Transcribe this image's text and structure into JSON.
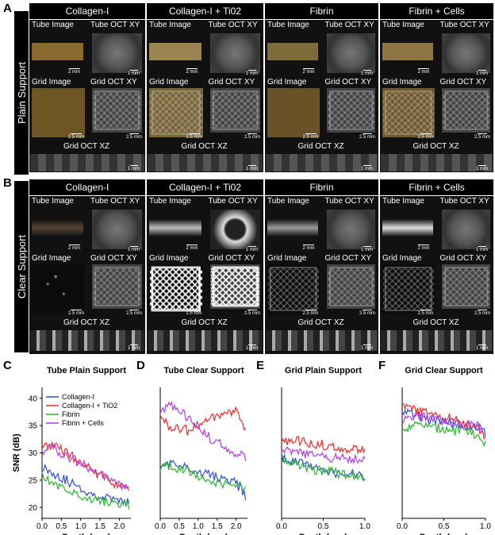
{
  "panels": {
    "A": "A",
    "B": "B",
    "C": "C",
    "D": "D",
    "E": "E",
    "F": "F"
  },
  "row_labels": {
    "A": "Plain Support",
    "B": "Clear Support"
  },
  "columns": [
    "Collagen-I",
    "Collagen-I + Ti02",
    "Fibrin",
    "Fibrin + Cells"
  ],
  "subpanel_labels": {
    "tube_image": "Tube Image",
    "tube_oct_xy": "Tube OCT XY",
    "grid_image": "Grid Image",
    "grid_oct_xy": "Grid OCT XY",
    "grid_oct_xz": "Grid OCT XZ"
  },
  "scalebars": {
    "tube_image": "2 mm",
    "oct_1mm": "1 mm",
    "grid_2_5": "2.5 mm"
  },
  "colors": {
    "collagen": "#2f4fd8",
    "collagen_tio2": "#ef2a2a",
    "fibrin": "#2bb52b",
    "fibrin_cells": "#b33ee0"
  },
  "chart_data": [
    {
      "type": "line",
      "panel": "C",
      "title": "Tube Plain Support",
      "xlabel": "Depth (mm)",
      "ylabel": "SNR (dB)",
      "xlim": [
        0,
        2.3
      ],
      "ylim": [
        18,
        42
      ],
      "xticks": [
        "0.0",
        "0.5",
        "1.0",
        "1.5",
        "2.0"
      ],
      "yticks": [
        "20",
        "25",
        "30",
        "35",
        "40"
      ],
      "legend": [
        "Collagen-I",
        "Collagen-I + TiO2",
        "Fibrin",
        "Fibrin + Cells"
      ],
      "series": [
        {
          "name": "Collagen-I",
          "x": [
            0,
            0.25,
            0.5,
            0.75,
            1.0,
            1.25,
            1.5,
            1.75,
            2.0,
            2.25
          ],
          "values": [
            27.5,
            26.5,
            25.5,
            24.5,
            23.5,
            22.5,
            22,
            21.5,
            21,
            21
          ]
        },
        {
          "name": "Collagen-I + TiO2",
          "x": [
            0,
            0.25,
            0.5,
            0.75,
            1.0,
            1.25,
            1.5,
            1.75,
            2.0,
            2.25
          ],
          "values": [
            31,
            31.5,
            30.5,
            29.5,
            28,
            27,
            26,
            25,
            24,
            23
          ]
        },
        {
          "name": "Fibrin",
          "x": [
            0,
            0.25,
            0.5,
            0.75,
            1.0,
            1.25,
            1.5,
            1.75,
            2.0,
            2.25
          ],
          "values": [
            26,
            24.5,
            23.5,
            22.5,
            22,
            21.5,
            21,
            21,
            20.5,
            20.5
          ]
        },
        {
          "name": "Fibrin + Cells",
          "x": [
            0,
            0.25,
            0.5,
            0.75,
            1.0,
            1.25,
            1.5,
            1.75,
            2.0,
            2.25
          ],
          "values": [
            30,
            31,
            30,
            29,
            28,
            27,
            26,
            25,
            24,
            23
          ]
        }
      ]
    },
    {
      "type": "line",
      "panel": "D",
      "title": "Tube Clear Support",
      "xlabel": "Depth (mm)",
      "ylabel": "",
      "xlim": [
        0,
        2.3
      ],
      "ylim": [
        18,
        42
      ],
      "xticks": [
        "0.0",
        "0.5",
        "1.0",
        "1.5",
        "2.0"
      ],
      "yticks": [],
      "series": [
        {
          "name": "Collagen-I",
          "x": [
            0,
            0.25,
            0.5,
            0.75,
            1.0,
            1.25,
            1.5,
            1.75,
            2.0,
            2.25
          ],
          "values": [
            27.5,
            28,
            27.5,
            27,
            26.5,
            26,
            25.5,
            25,
            24.5,
            22
          ]
        },
        {
          "name": "Collagen-I + TiO2",
          "x": [
            0,
            0.25,
            0.5,
            0.75,
            1.0,
            1.25,
            1.5,
            1.75,
            2.0,
            2.25
          ],
          "values": [
            36,
            35,
            34.5,
            34,
            35,
            36,
            36.5,
            37,
            37.5,
            34
          ]
        },
        {
          "name": "Fibrin",
          "x": [
            0,
            0.25,
            0.5,
            0.75,
            1.0,
            1.25,
            1.5,
            1.75,
            2.0,
            2.25
          ],
          "values": [
            27,
            27.5,
            27,
            26.5,
            25.5,
            25,
            24.5,
            24.5,
            24,
            23.5
          ]
        },
        {
          "name": "Fibrin + Cells",
          "x": [
            0,
            0.25,
            0.5,
            0.75,
            1.0,
            1.25,
            1.5,
            1.75,
            2.0,
            2.25
          ],
          "values": [
            37,
            39,
            38,
            36,
            35,
            33,
            32,
            31,
            30,
            29
          ]
        }
      ]
    },
    {
      "type": "line",
      "panel": "E",
      "title": "Grid Plain Support",
      "xlabel": "Depth (mm)",
      "ylabel": "",
      "xlim": [
        0,
        1.0
      ],
      "ylim": [
        18,
        42
      ],
      "xticks": [
        "0.0",
        "0.5",
        "1.0"
      ],
      "yticks": [],
      "series": [
        {
          "name": "Collagen-I",
          "x": [
            0,
            0.125,
            0.25,
            0.375,
            0.5,
            0.625,
            0.75,
            0.875,
            1.0
          ],
          "values": [
            29,
            28.5,
            28,
            27.5,
            27,
            26.5,
            26,
            26,
            25.5
          ]
        },
        {
          "name": "Collagen-I + TiO2",
          "x": [
            0,
            0.125,
            0.25,
            0.375,
            0.5,
            0.625,
            0.75,
            0.875,
            1.0
          ],
          "values": [
            32,
            32.5,
            32,
            31.5,
            31.5,
            31,
            31,
            30.5,
            30.5
          ]
        },
        {
          "name": "Fibrin",
          "x": [
            0,
            0.125,
            0.25,
            0.375,
            0.5,
            0.625,
            0.75,
            0.875,
            1.0
          ],
          "values": [
            28.5,
            28,
            27.5,
            27,
            26.5,
            26.5,
            26,
            26,
            25.5
          ]
        },
        {
          "name": "Fibrin + Cells",
          "x": [
            0,
            0.125,
            0.25,
            0.375,
            0.5,
            0.625,
            0.75,
            0.875,
            1.0
          ],
          "values": [
            30.5,
            30,
            30,
            29.5,
            29.5,
            29,
            29,
            29,
            28.5
          ]
        }
      ]
    },
    {
      "type": "line",
      "panel": "F",
      "title": "Grid Clear Support",
      "xlabel": "Depth (mm)",
      "ylabel": "",
      "xlim": [
        0,
        1.0
      ],
      "ylim": [
        18,
        42
      ],
      "xticks": [
        "0.0",
        "0.5",
        "1.0"
      ],
      "yticks": [],
      "series": [
        {
          "name": "Collagen-I",
          "x": [
            0,
            0.125,
            0.25,
            0.375,
            0.5,
            0.625,
            0.75,
            0.875,
            1.0
          ],
          "values": [
            37.5,
            37,
            36.5,
            36,
            35.5,
            35.5,
            35,
            35,
            34
          ]
        },
        {
          "name": "Collagen-I + TiO2",
          "x": [
            0,
            0.125,
            0.25,
            0.375,
            0.5,
            0.625,
            0.75,
            0.875,
            1.0
          ],
          "values": [
            38.5,
            38,
            37.5,
            37,
            36.5,
            36,
            35.5,
            35,
            33
          ]
        },
        {
          "name": "Fibrin",
          "x": [
            0,
            0.125,
            0.25,
            0.375,
            0.5,
            0.625,
            0.75,
            0.875,
            1.0
          ],
          "values": [
            34.5,
            35,
            35,
            34.5,
            34.5,
            34,
            34,
            33.5,
            32
          ]
        },
        {
          "name": "Fibrin + Cells",
          "x": [
            0,
            0.125,
            0.25,
            0.375,
            0.5,
            0.625,
            0.75,
            0.875,
            1.0
          ],
          "values": [
            36,
            36.5,
            36.5,
            36,
            35.5,
            35,
            35,
            35,
            34
          ]
        }
      ]
    }
  ]
}
